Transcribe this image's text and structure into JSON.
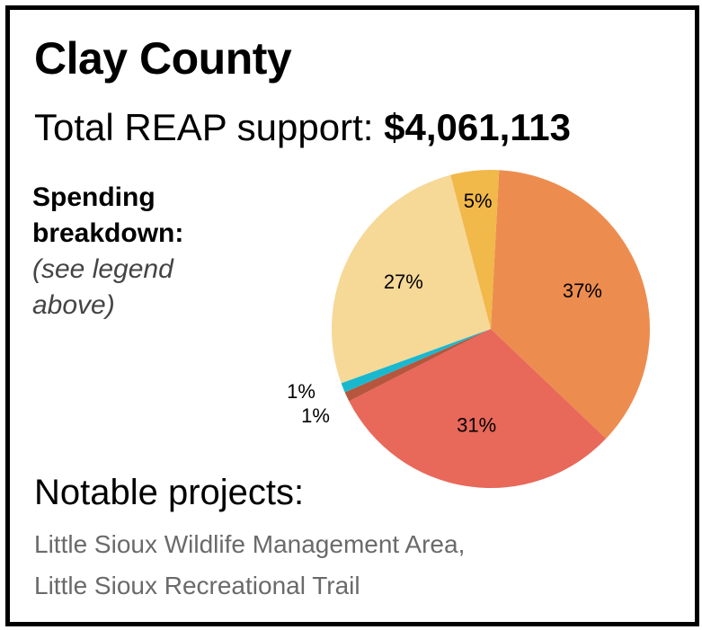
{
  "county": "Clay County",
  "total_label": "Total REAP support:",
  "total_value": "$4,061,113",
  "breakdown": {
    "heading_line1": "Spending",
    "heading_line2": "breakdown:",
    "note": "(see legend above)"
  },
  "notable": {
    "heading": "Notable projects:",
    "items": [
      "Little Sioux Wildlife Management Area,",
      "Little Sioux Recreational Trail"
    ]
  },
  "chart_data": {
    "type": "pie",
    "slices": [
      {
        "value": 37,
        "label": "37%",
        "color": "#ec8d4f"
      },
      {
        "value": 31,
        "label": "31%",
        "color": "#e8685a"
      },
      {
        "value": 1,
        "label": "1%",
        "color": "#b5563d"
      },
      {
        "value": 1,
        "label": "1%",
        "color": "#1ab8cf"
      },
      {
        "value": 27,
        "label": "27%",
        "color": "#f6d897"
      },
      {
        "value": 5,
        "label": "5%",
        "color": "#f1b84a"
      }
    ]
  }
}
